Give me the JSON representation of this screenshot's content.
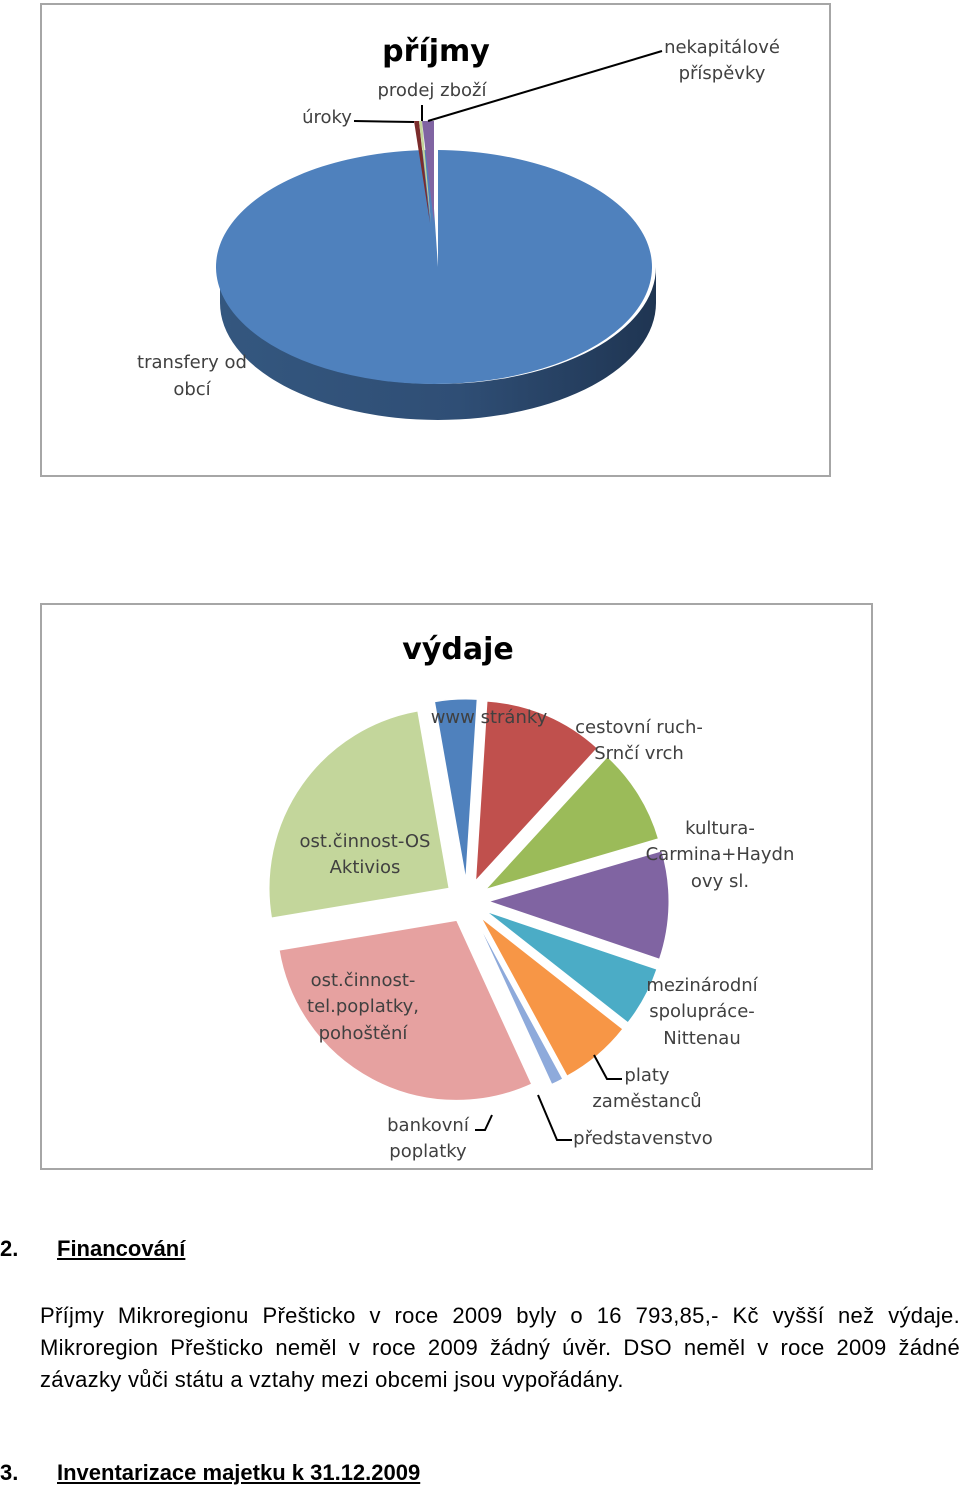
{
  "chart_data": [
    {
      "type": "pie",
      "style": "3d",
      "title": "příjmy",
      "categories": [
        "transfery od obcí",
        "úroky",
        "prodej zboží",
        "nekapitálové příspěvky"
      ],
      "values": [
        97.2,
        0.9,
        0.4,
        1.5
      ],
      "colors": [
        "#4f81bd",
        "#7b2c2c",
        "#c3d69b",
        "#8064a2"
      ],
      "legend": "none"
    },
    {
      "type": "pie",
      "style": "exploded",
      "title": "výdaje",
      "categories": [
        "www stránky",
        "cestovní ruch-Srnčí vrch",
        "kultura-Carmina+Haydnovy sl.",
        "mezinárodní spolupráce-Nittenau",
        "platy zaměstanců",
        "představenstvo",
        "bankovní poplatky",
        "ost.činnost-tel.poplatky, pohoštění",
        "ost.činnost-OS Aktivios"
      ],
      "values": [
        3.5,
        10,
        8,
        9,
        5,
        6,
        1,
        27,
        23
      ],
      "colors": [
        "#4f81bd",
        "#c0504d",
        "#9bbb59",
        "#8064a2",
        "#4bacc6",
        "#f79646",
        "#8eaadb",
        "#e6a1a0",
        "#c3d69b"
      ],
      "legend": "none"
    }
  ],
  "chart1": {
    "title": "příjmy",
    "label_uroky": "úroky",
    "label_prodej": "prodej zboží",
    "label_nekap": [
      "nekapitálové",
      "příspěvky"
    ],
    "label_transfery": [
      "transfery od",
      "obcí"
    ]
  },
  "chart2": {
    "title": "výdaje",
    "label_www": "www stránky",
    "label_cest": [
      "cestovní ruch-",
      "Srnčí vrch"
    ],
    "label_kult": [
      "kultura-",
      "Carmina+Haydn",
      "ovy sl."
    ],
    "label_mezi": [
      "mezinárodní",
      "spolupráce-",
      "Nittenau"
    ],
    "label_platy": [
      "platy",
      "zaměstanců"
    ],
    "label_pred": "představenstvo",
    "label_bank": [
      "bankovní",
      "poplatky"
    ],
    "label_tel": [
      "ost.činnost-",
      "tel.poplatky,",
      "pohoštění"
    ],
    "label_akt": [
      "ost.činnost-OS",
      "Aktivios"
    ]
  },
  "section2": {
    "number": "2.",
    "title": "Financování"
  },
  "paragraph": "Příjmy Mikroregionu Přešticko v roce 2009 byly o 16 793,85,- Kč vyšší než výdaje. Mikroregion Přešticko neměl v roce 2009 žádný úvěr. DSO neměl v roce 2009 žádné závazky vůči státu a vztahy mezi obcemi jsou vypořádány.",
  "section3": {
    "number": "3.",
    "title": "Inventarizace majetku k 31.12.2009"
  }
}
